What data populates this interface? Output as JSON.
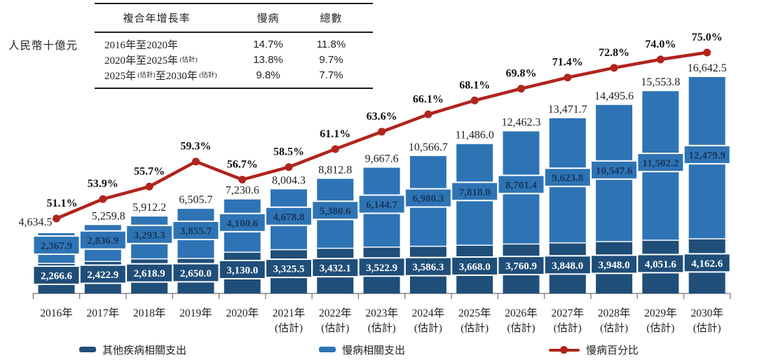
{
  "unit_label": "人民幣十億元",
  "colors": {
    "other_dark_blue": "#1F4E79",
    "chronic_light_blue": "#2E74B5",
    "line_red": "#B0241C",
    "light_box_text": "#17375E",
    "axis_gray": "#6f6f6f",
    "label_black": "#1f1f1f"
  },
  "cagr_table": {
    "header": [
      "複合年增長率",
      "慢病",
      "總數"
    ],
    "rows": [
      {
        "period_parts": [
          [
            "2016年至2020年",
            false
          ]
        ],
        "chronic": "14.7%",
        "total": "11.8%"
      },
      {
        "period_parts": [
          [
            "2020年至2025年",
            false
          ],
          [
            "(估計)",
            true
          ]
        ],
        "chronic": "13.8%",
        "total": "9.7%"
      },
      {
        "period_parts": [
          [
            "2025年",
            false
          ],
          [
            "(估計)",
            true
          ],
          [
            "至2030年",
            false
          ],
          [
            "(估計)",
            true
          ]
        ],
        "chronic": "9.8%",
        "total": "7.7%"
      }
    ]
  },
  "chart_data": {
    "type": "bar",
    "subtype": "stacked-bars-with-percentage-line",
    "categories": [
      "2016年",
      "2017年",
      "2018年",
      "2019年",
      "2020年",
      "2021年",
      "2022年",
      "2023年",
      "2024年",
      "2025年",
      "2026年",
      "2027年",
      "2028年",
      "2029年",
      "2030年"
    ],
    "category_notes": [
      "",
      "",
      "",
      "",
      "",
      "(估計)",
      "(估計)",
      "(估計)",
      "(估計)",
      "(估計)",
      "(估計)",
      "(估計)",
      "(估計)",
      "(估計)",
      "(估計)"
    ],
    "series": [
      {
        "name": "其他疾病相關支出",
        "role": "bar-bottom",
        "color": "#1F4E79",
        "values": [
          2266.6,
          2422.9,
          2618.9,
          2650.0,
          3130.0,
          3325.5,
          3432.1,
          3522.9,
          3586.3,
          3668.0,
          3760.9,
          3848.0,
          3948.0,
          4051.6,
          4162.6
        ]
      },
      {
        "name": "慢病相關支出",
        "role": "bar-top",
        "color": "#2E74B5",
        "values": [
          2367.9,
          2836.9,
          3293.3,
          3855.7,
          4100.6,
          4678.8,
          5380.6,
          6144.7,
          6980.3,
          7818.0,
          8701.4,
          9623.8,
          10547.6,
          11502.2,
          12479.9
        ]
      },
      {
        "name": "慢病百分比",
        "role": "line",
        "color": "#B0241C",
        "values": [
          51.1,
          53.9,
          55.7,
          59.3,
          56.7,
          58.5,
          61.1,
          63.6,
          66.1,
          68.1,
          69.8,
          71.4,
          72.8,
          74.0,
          75.0
        ]
      }
    ],
    "totals": [
      4634.5,
      5259.8,
      5912.2,
      6505.7,
      7230.6,
      8004.3,
      8812.8,
      9667.6,
      10566.7,
      11486.0,
      12462.3,
      13471.7,
      14495.6,
      15553.8,
      16642.5
    ],
    "ylabel": "人民幣十億元",
    "grid": false,
    "legend_position": "bottom"
  },
  "legend": [
    {
      "label": "其他疾病相關支出",
      "color": "#1F4E79",
      "marker": "rect"
    },
    {
      "label": "慢病相關支出",
      "color": "#2E74B5",
      "marker": "rect"
    },
    {
      "label": "慢病百分比",
      "color": "#B0241C",
      "marker": "line-dot"
    }
  ]
}
